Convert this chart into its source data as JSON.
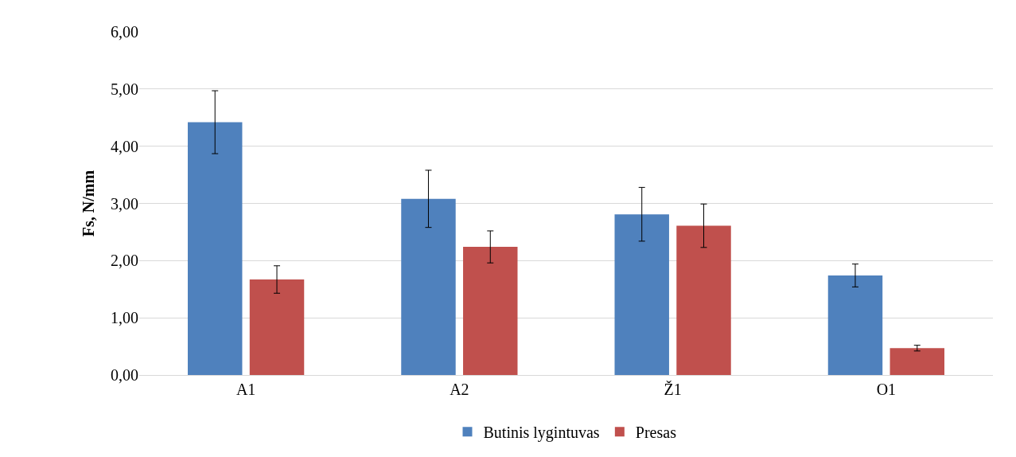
{
  "chart_data": {
    "type": "bar",
    "ylabel": "Fs, N/mm",
    "categories": [
      "A1",
      "A2",
      "Ž1",
      "O1"
    ],
    "series": [
      {
        "name": "Butinis lygintuvas",
        "color": "#4f81bd",
        "values": [
          4.42,
          3.08,
          2.81,
          1.74
        ],
        "errors": [
          0.55,
          0.5,
          0.47,
          0.2
        ]
      },
      {
        "name": "Presas",
        "color": "#c0504d",
        "values": [
          1.67,
          2.24,
          2.61,
          0.47
        ],
        "errors": [
          0.24,
          0.28,
          0.38,
          0.05
        ]
      }
    ],
    "ylim": [
      0,
      6
    ],
    "yticks": [
      {
        "value": 0,
        "label": "0,00"
      },
      {
        "value": 1,
        "label": "1,00"
      },
      {
        "value": 2,
        "label": "2,00"
      },
      {
        "value": 3,
        "label": "3,00"
      },
      {
        "value": 4,
        "label": "4,00"
      },
      {
        "value": 5,
        "label": "5,00"
      },
      {
        "value": 6,
        "label": "6,00"
      }
    ],
    "grid": "y",
    "legend": "bottom"
  }
}
